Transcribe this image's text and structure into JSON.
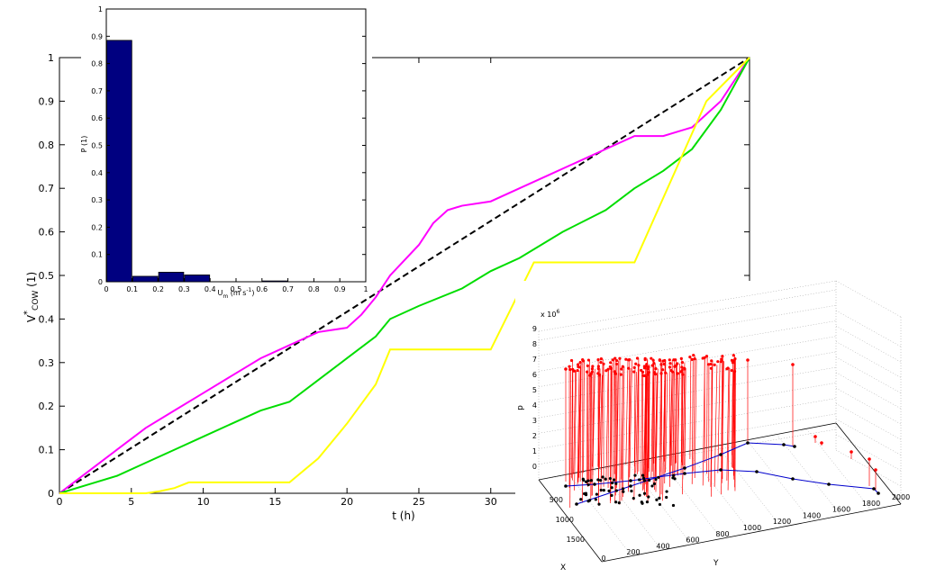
{
  "chart_data": [
    {
      "type": "line",
      "xlabel": "t (h)",
      "ylabel_main": "V",
      "ylabel_sup": "*",
      "ylabel_sub": "COW",
      "ylabel_unit": " (1)",
      "xlim": [
        0,
        48
      ],
      "ylim": [
        0,
        1
      ],
      "xticks": [
        0,
        5,
        10,
        15,
        20,
        25,
        30
      ],
      "yticks": [
        0,
        0.1,
        0.2,
        0.3,
        0.4,
        0.5,
        0.6,
        0.7,
        0.8,
        0.9,
        1
      ],
      "series": [
        {
          "color": "#000000",
          "dashed": true,
          "x": [
            0,
            48
          ],
          "y": [
            0,
            1
          ]
        },
        {
          "color": "#ff00ff",
          "x": [
            0,
            2,
            4,
            6,
            8,
            10,
            12,
            14,
            16,
            18,
            20,
            21,
            22,
            23,
            25,
            26,
            27,
            28,
            30,
            32,
            34,
            36,
            38,
            40,
            42,
            44,
            46,
            48
          ],
          "y": [
            0,
            0.05,
            0.1,
            0.15,
            0.19,
            0.23,
            0.27,
            0.31,
            0.34,
            0.37,
            0.38,
            0.41,
            0.45,
            0.5,
            0.57,
            0.62,
            0.65,
            0.66,
            0.67,
            0.7,
            0.73,
            0.76,
            0.79,
            0.82,
            0.82,
            0.84,
            0.9,
            1.0
          ]
        },
        {
          "color": "#00dd00",
          "x": [
            0,
            2,
            4,
            6,
            8,
            10,
            12,
            14,
            16,
            18,
            20,
            22,
            23,
            25,
            28,
            30,
            32,
            35,
            38,
            40,
            42,
            44,
            46,
            48
          ],
          "y": [
            0,
            0.02,
            0.04,
            0.07,
            0.1,
            0.13,
            0.16,
            0.19,
            0.21,
            0.26,
            0.31,
            0.36,
            0.4,
            0.43,
            0.47,
            0.51,
            0.54,
            0.6,
            0.65,
            0.7,
            0.74,
            0.79,
            0.88,
            1.0
          ]
        },
        {
          "color": "#ffff00",
          "x": [
            0,
            6,
            7,
            8,
            9,
            16,
            18,
            20,
            22,
            23,
            30,
            33,
            40,
            45,
            48
          ],
          "y": [
            0,
            0,
            0.005,
            0.012,
            0.025,
            0.025,
            0.08,
            0.16,
            0.25,
            0.33,
            0.33,
            0.53,
            0.53,
            0.9,
            1.0
          ]
        }
      ]
    },
    {
      "type": "bar",
      "xlabel_main": "U",
      "xlabel_sub": "m",
      "xlabel_unit": " (m s",
      "xlabel_exp": "-1",
      "xlabel_close": ")",
      "ylabel": "P (1)",
      "xlim": [
        0,
        1
      ],
      "ylim": [
        0,
        1
      ],
      "xticks": [
        "0",
        "0.1",
        "0.2",
        "0.3",
        "0.4",
        "0.5",
        "0.6",
        "0.7",
        "0.8",
        "0.9",
        "1"
      ],
      "yticks": [
        "0",
        "0.1",
        "0.2",
        "0.3",
        "0.4",
        "0.5",
        "0.6",
        "0.7",
        "0.8",
        "0.9",
        "1"
      ],
      "bin_width": 0.1,
      "bins": [
        0,
        0.1,
        0.2,
        0.3,
        0.4,
        0.5,
        0.6,
        0.7,
        0.8,
        0.9
      ],
      "values": [
        0.885,
        0.02,
        0.035,
        0.025,
        0,
        0,
        0.003,
        0,
        0,
        0
      ],
      "color": "#000080"
    },
    {
      "type": "scatter",
      "zlabel": "p",
      "xlabel": "X",
      "ylabel": "Y",
      "z_scale_label": "x 10",
      "z_scale_exp": "6",
      "zticks": [
        "0",
        "1",
        "2",
        "3",
        "4",
        "5",
        "6",
        "7",
        "8",
        "9"
      ],
      "xticks": [
        "500",
        "1000",
        "1500"
      ],
      "yticks": [
        "0",
        "200",
        "400",
        "600",
        "800",
        "1000",
        "1200",
        "1400",
        "1600",
        "1800",
        "2000"
      ],
      "stem_color": "#ff0000",
      "path_color": "#0000cc",
      "dot_color": "#000000"
    }
  ]
}
